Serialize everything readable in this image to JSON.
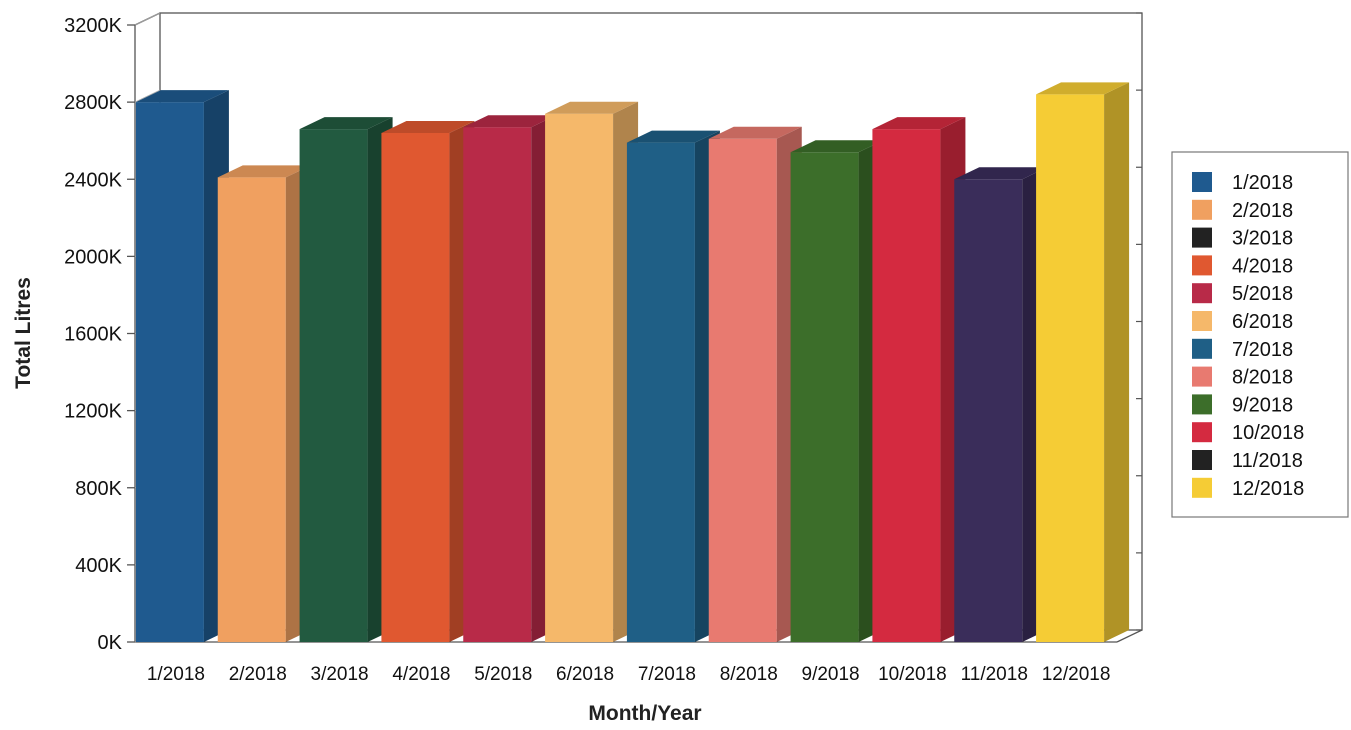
{
  "chart_data": {
    "type": "bar",
    "title": "",
    "xlabel": "Month/Year",
    "ylabel": "Total Litres",
    "ylim": [
      0,
      3200
    ],
    "yticks": [
      "0K",
      "400K",
      "800K",
      "1200K",
      "1600K",
      "2000K",
      "2400K",
      "2800K",
      "3200K"
    ],
    "categories": [
      "1/2018",
      "2/2018",
      "3/2018",
      "4/2018",
      "5/2018",
      "6/2018",
      "7/2018",
      "8/2018",
      "9/2018",
      "10/2018",
      "11/2018",
      "12/2018"
    ],
    "xtick_labels": [
      "1/2018",
      "2/2018",
      "3/2018",
      "4/2018",
      "5/2018",
      "6/2018",
      "7/2018",
      "8/2018",
      "9/2018",
      "10/2018",
      "11/2018",
      "12/2018"
    ],
    "values": [
      2800,
      2410,
      2660,
      2640,
      2670,
      2740,
      2590,
      2610,
      2540,
      2660,
      2400,
      2840
    ],
    "unit": "K",
    "colors": [
      "#1f5a8f",
      "#f0a060",
      "#225a40",
      "#e05830",
      "#b82a48",
      "#f5b86a",
      "#1f5f86",
      "#e87a70",
      "#3c6e2a",
      "#d42a40",
      "#3a2d5a",
      "#f5cc35"
    ],
    "legend_colors": [
      "#1f5a8f",
      "#f0a060",
      "#222222",
      "#e05830",
      "#b82a48",
      "#f5b86a",
      "#1f5f86",
      "#e87a70",
      "#3c6e2a",
      "#d42a40",
      "#222222",
      "#f5cc35"
    ],
    "legend_position": "right",
    "grid": false,
    "style": "3d"
  }
}
